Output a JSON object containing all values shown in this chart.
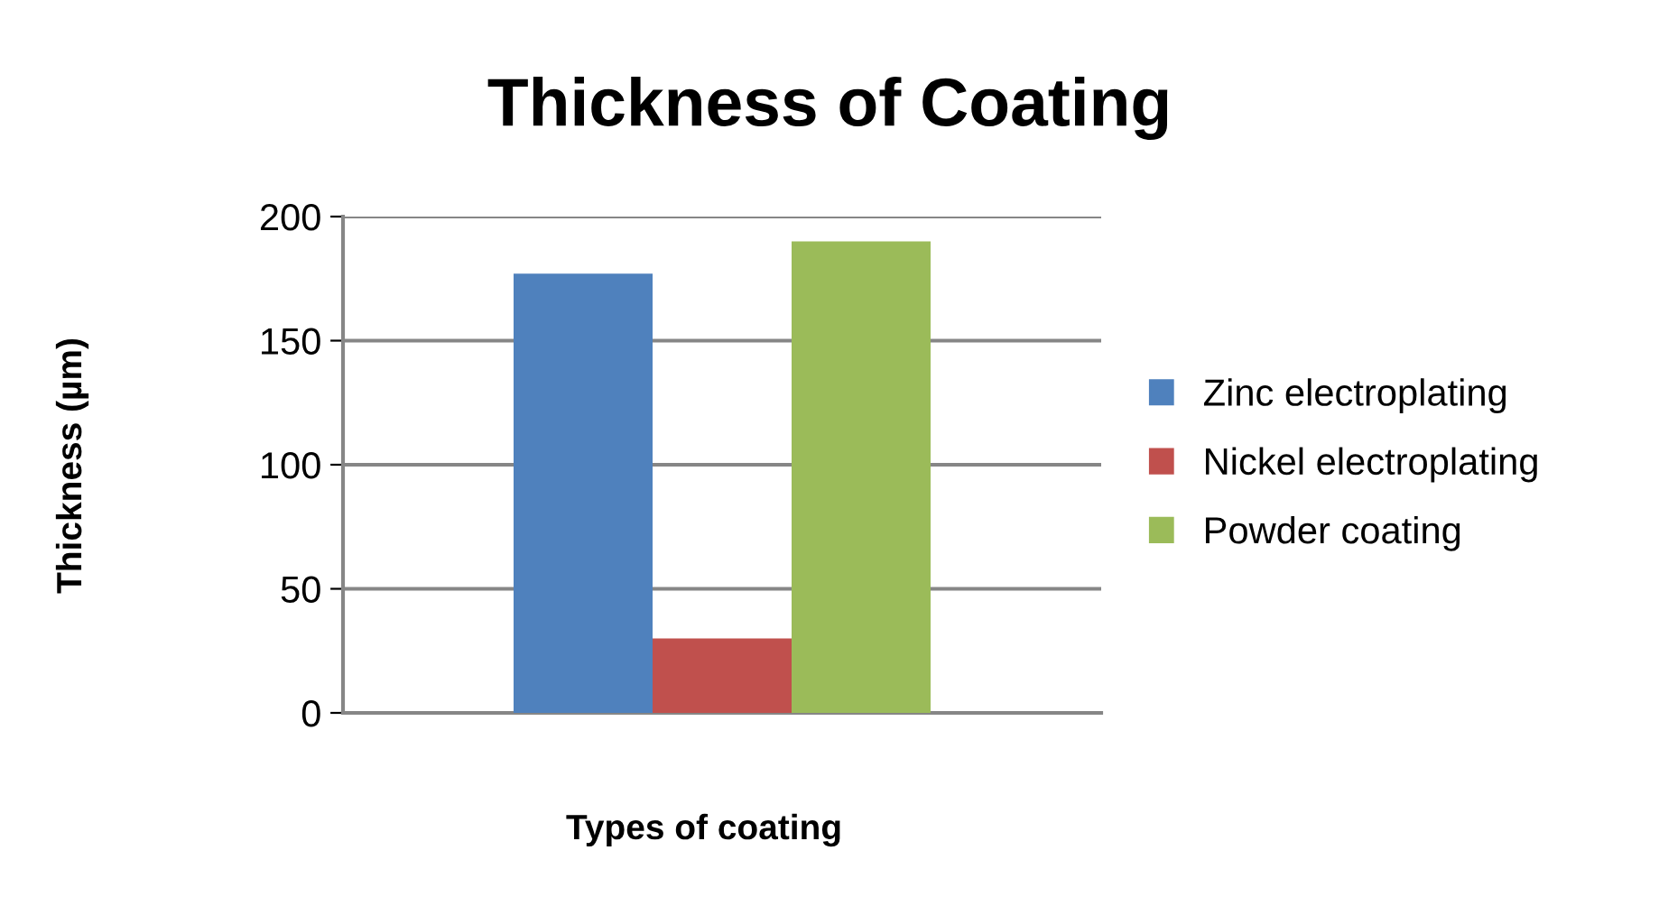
{
  "chart_data": {
    "type": "bar",
    "title": "Thickness of Coating",
    "xlabel": "Types of coating",
    "ylabel": "Thickness (µm)",
    "categories": [
      null
    ],
    "series": [
      {
        "name": "Zinc electroplating",
        "color": "#4f81bd",
        "values": [
          177
        ]
      },
      {
        "name": "Nickel electroplating",
        "color": "#c0504d",
        "values": [
          30
        ]
      },
      {
        "name": "Powder coating",
        "color": "#9bbb59",
        "values": [
          190
        ]
      }
    ],
    "ylim": [
      0,
      200
    ],
    "yticks": [
      0,
      50,
      100,
      150,
      200
    ],
    "grid": "y",
    "legend": "right"
  }
}
